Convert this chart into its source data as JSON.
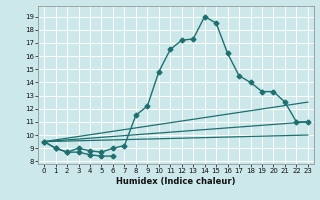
{
  "xlabel": "Humidex (Indice chaleur)",
  "bg_color": "#cce8ea",
  "line_color": "#1e7070",
  "grid_color": "#ffffff",
  "xlim": [
    -0.5,
    23.5
  ],
  "ylim": [
    7.8,
    19.8
  ],
  "xticks": [
    0,
    1,
    2,
    3,
    4,
    5,
    6,
    7,
    8,
    9,
    10,
    11,
    12,
    13,
    14,
    15,
    16,
    17,
    18,
    19,
    20,
    21,
    22,
    23
  ],
  "yticks": [
    8,
    9,
    10,
    11,
    12,
    13,
    14,
    15,
    16,
    17,
    18,
    19
  ],
  "main_curve_x": [
    0,
    1,
    2,
    3,
    4,
    5,
    6,
    7,
    8,
    9,
    10,
    11,
    12,
    13,
    14,
    15,
    16,
    17,
    18,
    19,
    20,
    21,
    22,
    23
  ],
  "main_curve_y": [
    9.5,
    9.0,
    8.7,
    9.0,
    8.8,
    8.7,
    9.0,
    9.2,
    11.5,
    12.2,
    14.8,
    16.5,
    17.2,
    17.3,
    19.0,
    18.5,
    16.2,
    14.5,
    14.0,
    13.3,
    13.3,
    12.5,
    11.0,
    11.0
  ],
  "short_curve_x": [
    0,
    1,
    2,
    3,
    4,
    5,
    6
  ],
  "short_curve_y": [
    9.5,
    9.0,
    8.7,
    8.7,
    8.5,
    8.4,
    8.4
  ],
  "line1": {
    "x": [
      0,
      23
    ],
    "y": [
      9.5,
      11.0
    ]
  },
  "line2": {
    "x": [
      0,
      23
    ],
    "y": [
      9.5,
      10.0
    ]
  },
  "line3": {
    "x": [
      0,
      23
    ],
    "y": [
      9.5,
      12.5
    ]
  }
}
